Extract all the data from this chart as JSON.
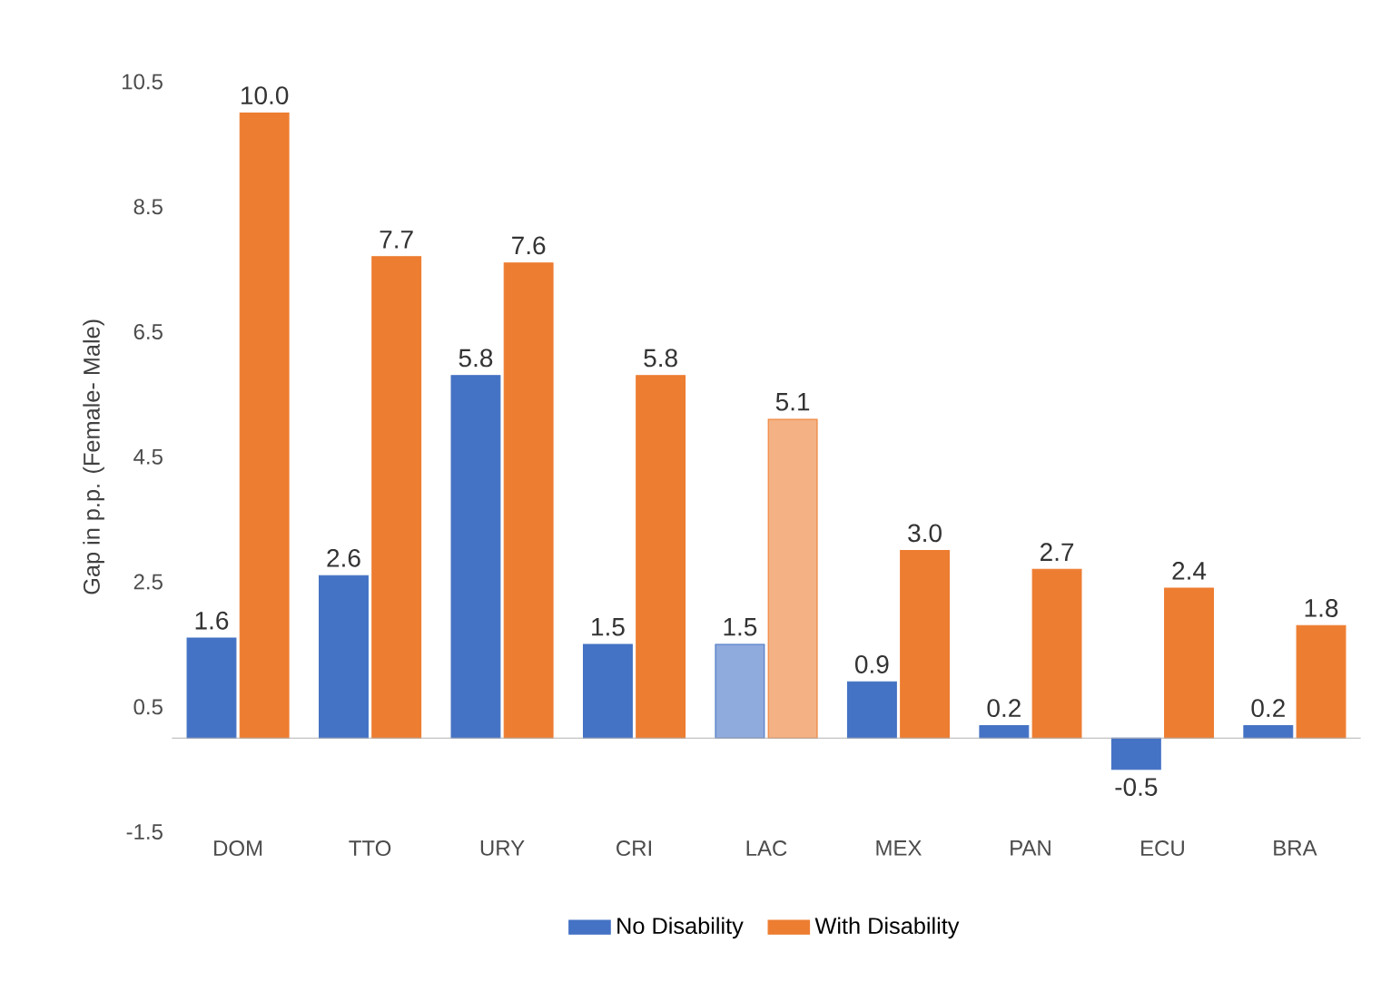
{
  "chart_data": {
    "type": "bar",
    "ylabel": "Gap in p.p. (Female- Male)",
    "categories": [
      "DOM",
      "TTO",
      "URY",
      "CRI",
      "LAC",
      "MEX",
      "PAN",
      "ECU",
      "BRA"
    ],
    "series": [
      {
        "name": "No Disability",
        "color": "#4472c4",
        "colors": [
          "#4472c4",
          "#4472c4",
          "#4472c4",
          "#4472c4",
          "#8faadc",
          "#4472c4",
          "#4472c4",
          "#4472c4",
          "#4472c4"
        ],
        "values": [
          1.6,
          2.6,
          5.8,
          1.5,
          1.5,
          0.9,
          0.2,
          -0.5,
          0.2
        ],
        "value_labels": [
          "1.6",
          "2.6",
          "5.8",
          "1.5",
          "1.5",
          "0.9",
          "0.2",
          "-0.5",
          "0.2"
        ]
      },
      {
        "name": "With Disability",
        "color": "#ed7d31",
        "colors": [
          "#ed7d31",
          "#ed7d31",
          "#ed7d31",
          "#ed7d31",
          "#f4b183",
          "#ed7d31",
          "#ed7d31",
          "#ed7d31",
          "#ed7d31"
        ],
        "values": [
          10.0,
          7.7,
          7.6,
          5.8,
          5.1,
          3.0,
          2.7,
          2.4,
          1.8
        ],
        "value_labels": [
          "10.0",
          "7.7",
          "7.6",
          "5.8",
          "5.1",
          "3.0",
          "2.7",
          "2.4",
          "1.8"
        ]
      }
    ],
    "ylim": [
      -1.5,
      10.5
    ],
    "yticks": [
      -1.5,
      0.5,
      2.5,
      4.5,
      6.5,
      8.5,
      10.5
    ],
    "legend": "bottom",
    "grid": false
  }
}
